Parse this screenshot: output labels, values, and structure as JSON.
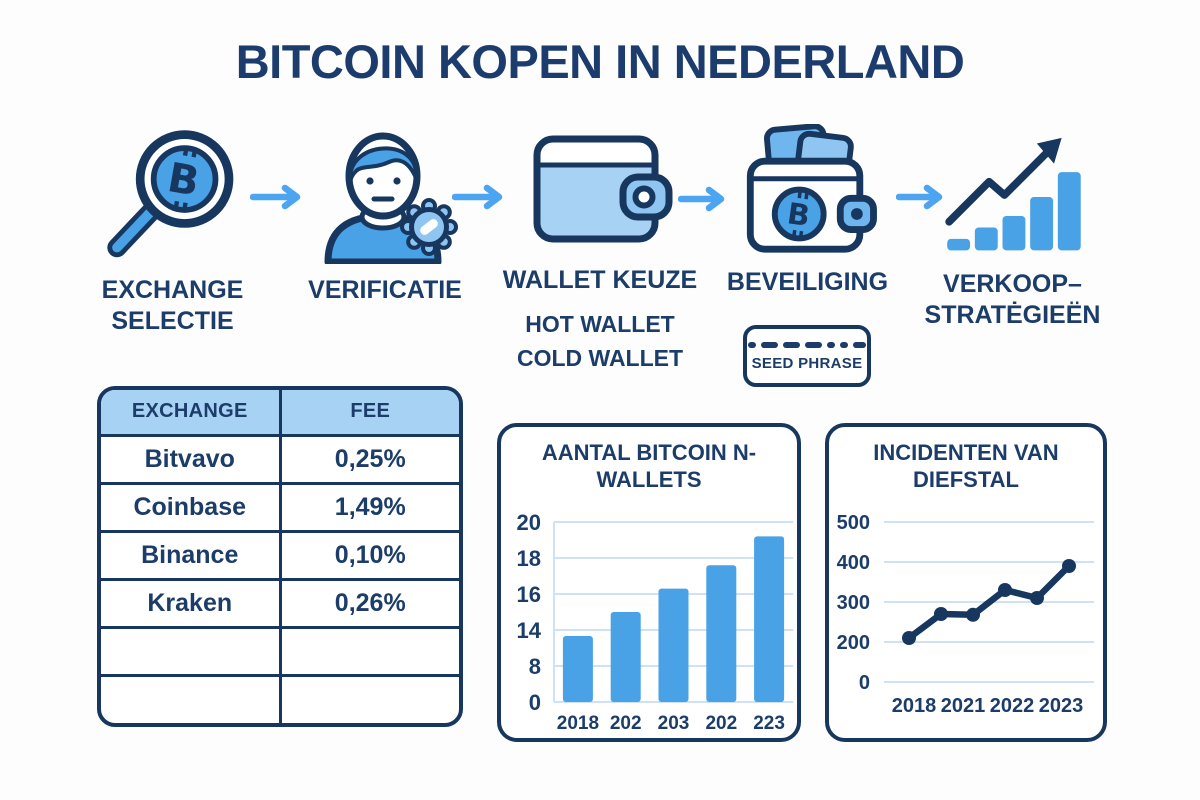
{
  "title": "BITCOIN KOPEN IN NEDERLAND",
  "colors": {
    "navy": "#1c3c6a",
    "dark_navy": "#17375f",
    "blue": "#49a1e6",
    "pale_blue": "#8fc5f1",
    "card_blue": "#6fb5ee",
    "light_blue": "#a8d2f4",
    "arrow_blue": "#4da4f0",
    "gridline": "#cfe2f4",
    "white": "#ffffff"
  },
  "steps": [
    {
      "icon": "magnifier-bitcoin-icon",
      "label_lines": [
        "EXCHANGE",
        "SELECTIE"
      ]
    },
    {
      "icon": "person-gear-icon",
      "label_lines": [
        "VERIFICATIE"
      ]
    },
    {
      "icon": "wallet-icon",
      "label_lines": [
        "WALLET KEUZE"
      ],
      "sub": [
        "HOT WALLET",
        "COLD WALLET"
      ]
    },
    {
      "icon": "secure-wallet-icon",
      "label_lines": [
        "BEVEILIGING"
      ],
      "badge": {
        "text": "SEED PHRASE",
        "dashes": [
          8,
          17,
          17,
          17,
          8,
          8,
          13
        ]
      }
    },
    {
      "icon": "growth-chart-icon",
      "label_lines": [
        "VERKOOP–",
        "STRATĖGIEËN"
      ]
    }
  ],
  "table": {
    "headers": [
      "EXCHANGE",
      "FEE"
    ],
    "rows": [
      [
        "Bitvavo",
        "0,25%"
      ],
      [
        "Coinbase",
        "1,49%"
      ],
      [
        "Binance",
        "0,10%"
      ],
      [
        "Kraken",
        "0,26%"
      ],
      [
        "",
        ""
      ],
      [
        "",
        ""
      ]
    ]
  },
  "chart_data": [
    {
      "type": "bar",
      "title_lines": [
        "AANTAL BITCOIN N-",
        "WALLETS"
      ],
      "categories": [
        "2018",
        "202",
        "203",
        "202",
        "223"
      ],
      "values": [
        13,
        15,
        16.3,
        17.6,
        19.2
      ],
      "yticks": [
        20,
        18,
        16,
        14,
        8,
        0
      ],
      "grid": true,
      "legend": false
    },
    {
      "type": "line",
      "title_lines": [
        "INCIDENTEN VAN",
        "DIEFSTAL"
      ],
      "x_labels": [
        "2018",
        "2021",
        "2022",
        "2023"
      ],
      "values": [
        210,
        270,
        268,
        330,
        310,
        390
      ],
      "yticks": [
        500,
        400,
        300,
        200,
        0
      ],
      "grid": true,
      "legend": false
    }
  ]
}
